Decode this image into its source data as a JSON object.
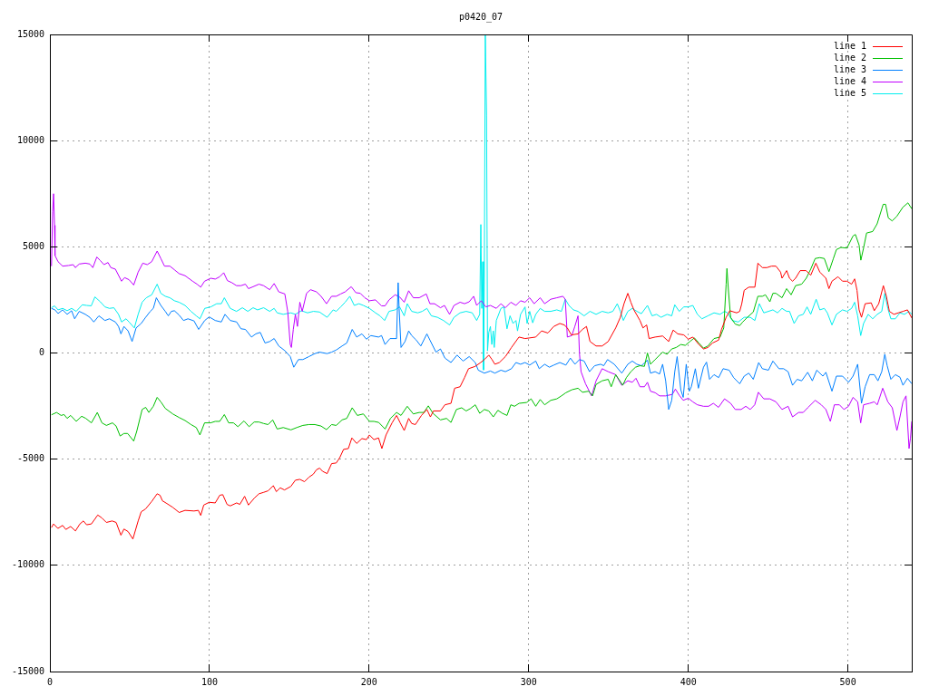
{
  "chart_data": {
    "type": "line",
    "title": "p0420_07",
    "xlim": [
      0,
      540
    ],
    "xticks": [
      0,
      100,
      200,
      300,
      400,
      500
    ],
    "ylim": [
      -15000,
      15000
    ],
    "yticks": [
      -15000,
      -10000,
      -5000,
      0,
      5000,
      10000,
      15000
    ],
    "grid": true,
    "legend": "top right",
    "series": [
      {
        "name": "line 1",
        "color": "#ff0000",
        "x": [
          1,
          2.3,
          5,
          8,
          10,
          13,
          16,
          18.8,
          21,
          23,
          26,
          30,
          32.6,
          35.4,
          39,
          41.5,
          44.5,
          46.4,
          49,
          52,
          55.3,
          57.2,
          60,
          63.8,
          67.2,
          69,
          70.5,
          73.3,
          77,
          81,
          84.7,
          90.3,
          93,
          94.5,
          96.4,
          99.8,
          103.6,
          106.4,
          108.3,
          111,
          113,
          117,
          119,
          122,
          124.4,
          128,
          131,
          134,
          136.7,
          140,
          141.9,
          144.3,
          147,
          151,
          153.8,
          156.6,
          159.5,
          162.3,
          165,
          167,
          169,
          170.8,
          173.7,
          176.5,
          179.4,
          181.6,
          184,
          187,
          189.2,
          192.2,
          195.5,
          198.3,
          200.2,
          203,
          205.9,
          208,
          210.6,
          214.4,
          217.2,
          219.5,
          222,
          224.8,
          226.7,
          229,
          232.8,
          236.2,
          238.4,
          240.3,
          244.7,
          247.5,
          251.3,
          253.6,
          257,
          259.8,
          262.3,
          266.5,
          269.9,
          272.2,
          275,
          277,
          278.8,
          281.6,
          285.4,
          289.2,
          293.9,
          297.7,
          300.6,
          304.4,
          308.1,
          312,
          315.7,
          319.5,
          322.3,
          324.2,
          326.7,
          330.9,
          333.7,
          336.2,
          338.4,
          342.2,
          346,
          349.8,
          354.5,
          357.4,
          359.7,
          362.1,
          364,
          365.9,
          369.7,
          371.6,
          373.9,
          375.4,
          379.2,
          383.9,
          387.7,
          390.5,
          393.4,
          397.2,
          400,
          402.8,
          406.6,
          409.5,
          412.3,
          415.2,
          419,
          420.8,
          423.7,
          426,
          430.3,
          432.2,
          433.5,
          435,
          437.9,
          441.7,
          443.6,
          446.4,
          449.2,
          452.1,
          454.9,
          457.8,
          458.7,
          461.6,
          463.4,
          465.3,
          467.2,
          470.1,
          473.8,
          476.7,
          479.9,
          482.4,
          486.2,
          488.1,
          490,
          493.8,
          496.6,
          499.4,
          502.3,
          504.2,
          505.7,
          507,
          508.5,
          510.8,
          514.6,
          516.5,
          519.3,
          522.2,
          524.1,
          526,
          528.8,
          531.6,
          534.5,
          537.3,
          540
        ],
        "values": [
          -8220,
          -8050,
          -8260,
          -8120,
          -8310,
          -8170,
          -8380,
          -8050,
          -7910,
          -8090,
          -8050,
          -7630,
          -7770,
          -7980,
          -7910,
          -7980,
          -8580,
          -8290,
          -8410,
          -8760,
          -7910,
          -7480,
          -7340,
          -6990,
          -6630,
          -6700,
          -6960,
          -7090,
          -7270,
          -7510,
          -7410,
          -7440,
          -7410,
          -7650,
          -7160,
          -7030,
          -7060,
          -6700,
          -6670,
          -7130,
          -7200,
          -7060,
          -7130,
          -6750,
          -7160,
          -6840,
          -6630,
          -6560,
          -6490,
          -6250,
          -6530,
          -6350,
          -6450,
          -6280,
          -5990,
          -5950,
          -6060,
          -5850,
          -5710,
          -5500,
          -5420,
          -5570,
          -5680,
          -5210,
          -5180,
          -4930,
          -4540,
          -4500,
          -4000,
          -4260,
          -4030,
          -4080,
          -3860,
          -4080,
          -4000,
          -4500,
          -3860,
          -3290,
          -2940,
          -3290,
          -3650,
          -3080,
          -3320,
          -3370,
          -2940,
          -2660,
          -3010,
          -2730,
          -2730,
          -2440,
          -2370,
          -1660,
          -1590,
          -1160,
          -740,
          -630,
          -450,
          -310,
          -100,
          -310,
          -530,
          -450,
          -170,
          260,
          750,
          680,
          710,
          750,
          1040,
          940,
          1250,
          1390,
          1320,
          1180,
          850,
          900,
          1110,
          1250,
          540,
          330,
          330,
          540,
          1180,
          1680,
          2320,
          2810,
          2390,
          2030,
          1530,
          1180,
          1320,
          680,
          750,
          800,
          540,
          1080,
          900,
          850,
          650,
          750,
          400,
          190,
          260,
          470,
          610,
          1110,
          1680,
          1990,
          1890,
          1960,
          2320,
          2950,
          3100,
          3100,
          4230,
          4020,
          4020,
          4090,
          4090,
          3810,
          3520,
          3880,
          3520,
          3380,
          3520,
          3880,
          3880,
          3660,
          4230,
          3810,
          3520,
          3030,
          3380,
          3590,
          3380,
          3380,
          3240,
          3490,
          2950,
          2030,
          1680,
          2320,
          2360,
          1990,
          2320,
          3170,
          2670,
          1960,
          1820,
          1890,
          1960,
          2030,
          1650
        ]
      },
      {
        "name": "line 2",
        "color": "#00c000",
        "x": [
          1,
          4.2,
          7,
          8.9,
          10.8,
          13,
          16.5,
          19.9,
          22.5,
          26,
          29.7,
          32.6,
          35.4,
          39.2,
          41.5,
          44,
          46.4,
          48.7,
          52.5,
          54.4,
          57.8,
          60,
          62,
          64.8,
          67.2,
          69.5,
          72.3,
          77,
          81,
          84.7,
          88.4,
          91.7,
          94,
          96.9,
          100.7,
          103.6,
          106.4,
          109.3,
          112,
          115,
          117.8,
          121.6,
          124.8,
          128,
          131,
          133.9,
          136.7,
          139.6,
          142.4,
          146.2,
          151,
          154.7,
          158.5,
          162.3,
          166,
          169.9,
          173.3,
          176.5,
          179.4,
          183.1,
          186,
          189.4,
          192.6,
          196.4,
          200.2,
          203,
          206,
          210,
          213.4,
          217.2,
          220,
          223.9,
          227.7,
          231.4,
          234.3,
          237.1,
          240,
          244.7,
          248.5,
          251.3,
          254.7,
          258,
          260.8,
          263.6,
          266.5,
          269.3,
          272.2,
          275,
          277.8,
          280.7,
          283.5,
          286.4,
          288.8,
          291.1,
          294,
          298.7,
          301.5,
          304.4,
          307.2,
          310,
          313.8,
          317.6,
          320.5,
          323.3,
          327.1,
          330.9,
          333.7,
          337.5,
          340,
          342.2,
          346,
          349.8,
          351.7,
          354.5,
          358.9,
          361.2,
          364,
          366.9,
          369.7,
          372.5,
          374.4,
          376.3,
          379.2,
          383.9,
          386.7,
          389.6,
          392.4,
          395.3,
          398.1,
          401,
          403.8,
          406.6,
          409.5,
          412.3,
          416.1,
          419.9,
          422.2,
          423.7,
          424.2,
          425.2,
          426.5,
          429.4,
          432.2,
          434.1,
          437,
          440.7,
          443.6,
          446.4,
          448.3,
          451.1,
          453,
          454.9,
          458.7,
          461.6,
          464.4,
          467.2,
          471,
          473.9,
          476.7,
          479.5,
          482.4,
          485.2,
          488.1,
          490.9,
          492.8,
          495.6,
          499.4,
          503.2,
          504.7,
          507,
          508.1,
          509.8,
          511.7,
          515.5,
          518.3,
          522.1,
          523.6,
          525.3,
          527.7,
          530.6,
          534.4,
          537.6,
          540
        ],
        "values": [
          -2910,
          -2800,
          -2940,
          -2900,
          -3080,
          -2940,
          -3220,
          -2980,
          -3080,
          -3290,
          -2800,
          -3290,
          -3410,
          -3290,
          -3440,
          -3910,
          -3790,
          -3790,
          -4150,
          -3690,
          -2660,
          -2560,
          -2800,
          -2510,
          -2090,
          -2300,
          -2610,
          -2870,
          -3040,
          -3180,
          -3370,
          -3510,
          -3860,
          -3290,
          -3290,
          -3220,
          -3220,
          -2900,
          -3290,
          -3290,
          -3470,
          -3200,
          -3470,
          -3250,
          -3250,
          -3320,
          -3370,
          -3150,
          -3580,
          -3510,
          -3620,
          -3510,
          -3410,
          -3370,
          -3370,
          -3440,
          -3610,
          -3370,
          -3410,
          -3150,
          -3080,
          -2580,
          -2940,
          -2870,
          -3220,
          -3220,
          -3270,
          -3580,
          -3080,
          -2800,
          -2940,
          -2510,
          -2870,
          -2800,
          -2800,
          -2490,
          -2840,
          -3150,
          -3080,
          -3270,
          -2660,
          -2580,
          -2730,
          -2610,
          -2440,
          -2840,
          -2660,
          -2730,
          -3010,
          -2700,
          -2840,
          -2940,
          -2440,
          -2510,
          -2370,
          -2330,
          -2160,
          -2510,
          -2190,
          -2440,
          -2230,
          -2160,
          -2020,
          -1870,
          -1730,
          -1660,
          -1850,
          -1800,
          -2020,
          -1480,
          -1310,
          -1240,
          -1590,
          -1020,
          -1520,
          -1160,
          -880,
          -670,
          -600,
          -630,
          0,
          -530,
          -310,
          40,
          -60,
          190,
          260,
          400,
          360,
          540,
          710,
          470,
          230,
          330,
          680,
          750,
          1180,
          3240,
          3980,
          2880,
          1680,
          1360,
          1290,
          1460,
          1680,
          1930,
          2670,
          2670,
          2740,
          2410,
          2810,
          2810,
          2600,
          3030,
          2740,
          3170,
          3240,
          3520,
          3950,
          4450,
          4490,
          4450,
          3830,
          4450,
          4870,
          4970,
          4940,
          5510,
          5580,
          5080,
          4370,
          4940,
          5650,
          5720,
          6080,
          7000,
          7000,
          6360,
          6220,
          6430,
          6860,
          7070,
          6790
        ]
      },
      {
        "name": "line 3",
        "color": "#0080ff",
        "x": [
          1,
          3.2,
          5.1,
          8,
          10.8,
          13.6,
          15.5,
          18.4,
          22.2,
          25,
          27.5,
          30.7,
          34.5,
          37.3,
          41,
          43,
          44.5,
          46.4,
          49,
          51.5,
          54,
          57.2,
          60,
          62.9,
          64.8,
          66.7,
          69.5,
          72.3,
          74.2,
          76.1,
          78,
          80.9,
          83.7,
          86.5,
          90.3,
          93.2,
          97,
          99.8,
          103.6,
          107.4,
          109.7,
          113,
          117,
          119.7,
          122.5,
          126.3,
          129,
          131.8,
          134.8,
          137.7,
          140.5,
          143.4,
          147.2,
          150.6,
          152.8,
          155.7,
          158.5,
          162.3,
          166,
          168.9,
          173.7,
          176.5,
          179.4,
          183.1,
          186,
          189.4,
          192.2,
          195.5,
          198.3,
          201.1,
          205.9,
          207.8,
          210,
          213.1,
          217.2,
          218.2,
          218.8,
          220,
          222.5,
          224.8,
          226.7,
          229.5,
          232.4,
          236.2,
          238.1,
          241.9,
          244.7,
          247.5,
          251.3,
          255.1,
          258.9,
          262.7,
          266.5,
          268.4,
          272.2,
          276,
          278.8,
          282.6,
          285.4,
          289.2,
          292,
          294.9,
          297.7,
          300.6,
          304.4,
          306.6,
          310,
          312.9,
          315.7,
          319.5,
          323.3,
          326.1,
          329,
          331.8,
          334.7,
          338.1,
          341.3,
          345.1,
          347,
          349.4,
          353.6,
          358.3,
          362.1,
          364.9,
          367.7,
          370.6,
          374.4,
          376.3,
          379.2,
          382,
          383.9,
          385.8,
          387.7,
          389.6,
          391.5,
          393,
          395.3,
          396.8,
          398.7,
          400.6,
          401.9,
          404.4,
          406.3,
          409.5,
          411.4,
          413.3,
          416.1,
          419,
          421.8,
          425.6,
          428.4,
          432.2,
          435,
          437.9,
          440.7,
          444.1,
          446.4,
          450.2,
          453,
          456.8,
          459.7,
          462.5,
          465.3,
          468.2,
          471,
          474.8,
          477.7,
          480.5,
          484.3,
          486.2,
          490,
          492.8,
          496.6,
          500.4,
          503.2,
          506.1,
          508.5,
          510.8,
          513.6,
          516.5,
          518.8,
          521.2,
          523.1,
          524.6,
          526.9,
          529.7,
          532.6,
          534.5,
          537.3,
          540
        ],
        "values": [
          2100,
          2030,
          1860,
          2030,
          1820,
          1990,
          1610,
          1960,
          1820,
          1680,
          1460,
          1750,
          1530,
          1610,
          1460,
          1250,
          900,
          1250,
          1040,
          540,
          1180,
          1390,
          1680,
          1960,
          2100,
          2600,
          2240,
          1960,
          1750,
          1960,
          1990,
          1790,
          1530,
          1610,
          1510,
          1110,
          1530,
          1700,
          1530,
          1460,
          1820,
          1530,
          1460,
          1140,
          1110,
          750,
          900,
          970,
          470,
          540,
          680,
          330,
          110,
          -170,
          -670,
          -310,
          -310,
          -170,
          -30,
          40,
          -30,
          40,
          140,
          330,
          470,
          1110,
          750,
          900,
          650,
          820,
          750,
          820,
          400,
          680,
          680,
          3310,
          2100,
          260,
          540,
          1040,
          820,
          610,
          330,
          900,
          610,
          40,
          190,
          -240,
          -450,
          -100,
          -380,
          -170,
          -450,
          -810,
          -950,
          -850,
          -950,
          -810,
          -880,
          -740,
          -450,
          -530,
          -450,
          -570,
          -380,
          -740,
          -530,
          -670,
          -570,
          -450,
          -570,
          -240,
          -530,
          -310,
          -380,
          -880,
          -600,
          -530,
          -600,
          -310,
          -530,
          -950,
          -530,
          -380,
          -530,
          -600,
          -340,
          -950,
          -880,
          -990,
          -530,
          -1310,
          -2660,
          -2230,
          -880,
          -170,
          -1730,
          -2090,
          -530,
          -1800,
          -1590,
          -740,
          -1660,
          -670,
          -430,
          -1240,
          -1020,
          -1160,
          -740,
          -810,
          -1160,
          -1450,
          -1090,
          -950,
          -1240,
          -450,
          -740,
          -810,
          -380,
          -740,
          -740,
          -880,
          -1520,
          -1240,
          -1310,
          -910,
          -1310,
          -810,
          -1090,
          -910,
          -1800,
          -1090,
          -1090,
          -1380,
          -1090,
          -530,
          -2370,
          -1590,
          -1020,
          -1020,
          -1310,
          -880,
          -60,
          -600,
          -1240,
          -1020,
          -1140,
          -1520,
          -1190,
          -1450
        ]
      },
      {
        "name": "line 4",
        "color": "#c000ff",
        "x": [
          1,
          1.7,
          2.3,
          2.9,
          3.2,
          5.1,
          8,
          11.7,
          14.6,
          15.9,
          18.4,
          22.2,
          25,
          26.9,
          29.4,
          31.6,
          33.9,
          36.4,
          38.2,
          41,
          44.9,
          46.8,
          49.6,
          52.5,
          55.3,
          58.2,
          61,
          63.8,
          67.2,
          69.5,
          71.8,
          75.2,
          78,
          80.9,
          84.7,
          89.4,
          92.2,
          94.5,
          96.9,
          100.8,
          103.6,
          106.4,
          108.9,
          111.2,
          114,
          116.9,
          119.7,
          122.5,
          124.4,
          127.3,
          131,
          133.9,
          137.7,
          140.5,
          143.4,
          147.2,
          149,
          150.6,
          151.3,
          152.5,
          153.8,
          155.1,
          156.6,
          158.1,
          160.8,
          163.3,
          167,
          169.9,
          173.3,
          176.5,
          179.4,
          182.2,
          185,
          188.8,
          191.7,
          194.5,
          197.3,
          200.2,
          204,
          207.8,
          210,
          212.5,
          216.3,
          219.1,
          222,
          224.8,
          227.7,
          231.4,
          235.8,
          238.1,
          241,
          244.7,
          247.2,
          250.4,
          253.2,
          257,
          259.8,
          262.7,
          265.5,
          267.4,
          270.3,
          273.1,
          276,
          279.7,
          282.6,
          285.4,
          288.8,
          292,
          294.9,
          297.7,
          300.6,
          303.4,
          307.2,
          310,
          313.8,
          317.6,
          321.4,
          322.9,
          324.2,
          327,
          328.9,
          330.9,
          331.8,
          332.8,
          335.6,
          339.4,
          342.2,
          346,
          349.8,
          354.5,
          358.3,
          362.1,
          364.9,
          367.2,
          369.7,
          372.5,
          374.4,
          376.3,
          379.2,
          382,
          385.8,
          390,
          391.9,
          394.3,
          396.8,
          400,
          402.8,
          405.7,
          409.5,
          412.7,
          415.7,
          418.9,
          422.7,
          426.5,
          429.4,
          433.1,
          436,
          438.8,
          441.6,
          443.9,
          447.3,
          451.1,
          454.9,
          458.7,
          462.5,
          465.3,
          469.1,
          472,
          474.8,
          479.5,
          483.3,
          486.2,
          489,
          491.5,
          494.7,
          497.5,
          500.4,
          503.2,
          506.1,
          508,
          509.8,
          513.6,
          516.5,
          518.4,
          521.8,
          525,
          527.8,
          530.7,
          532.6,
          534.5,
          536.4,
          538.3,
          539.2,
          540
        ],
        "values": [
          4090,
          6650,
          7500,
          6010,
          4590,
          4300,
          4090,
          4120,
          4160,
          4020,
          4190,
          4230,
          4190,
          4020,
          4520,
          4350,
          4160,
          4260,
          4020,
          3950,
          3380,
          3550,
          3450,
          3200,
          3810,
          4230,
          4160,
          4300,
          4800,
          4450,
          4090,
          4090,
          3920,
          3740,
          3640,
          3380,
          3240,
          3100,
          3380,
          3520,
          3480,
          3590,
          3780,
          3410,
          3310,
          3170,
          3170,
          3240,
          3030,
          3120,
          3240,
          3170,
          2980,
          3270,
          2880,
          2780,
          1960,
          400,
          260,
          1110,
          1820,
          1250,
          2390,
          1960,
          2810,
          2980,
          2880,
          2670,
          2320,
          2670,
          2670,
          2780,
          2880,
          3120,
          2840,
          2810,
          2600,
          2460,
          2500,
          2220,
          2220,
          2500,
          2740,
          2640,
          2390,
          2930,
          2600,
          2600,
          2780,
          2320,
          2320,
          2130,
          2240,
          1820,
          2240,
          2390,
          2320,
          2410,
          2670,
          2240,
          2460,
          2170,
          2240,
          2100,
          2320,
          2130,
          2390,
          2240,
          2460,
          2390,
          2600,
          2320,
          2600,
          2320,
          2530,
          2600,
          2670,
          2530,
          750,
          820,
          1250,
          1750,
          -30,
          -880,
          -1450,
          -2020,
          -1310,
          -740,
          -880,
          -1020,
          -1520,
          -1310,
          -1380,
          -1190,
          -1590,
          -1590,
          -1380,
          -1800,
          -1870,
          -2020,
          -2020,
          -1950,
          -1700,
          -1990,
          -2230,
          -2130,
          -2300,
          -2440,
          -2510,
          -2510,
          -2370,
          -2560,
          -2160,
          -2370,
          -2660,
          -2660,
          -2510,
          -2660,
          -2440,
          -1850,
          -2160,
          -2160,
          -2300,
          -2660,
          -2510,
          -3010,
          -2800,
          -2800,
          -2580,
          -2230,
          -2440,
          -2660,
          -3220,
          -2440,
          -2440,
          -2660,
          -2510,
          -2090,
          -2300,
          -3290,
          -2440,
          -2370,
          -2300,
          -2440,
          -1660,
          -2300,
          -2580,
          -3650,
          -3010,
          -2300,
          -2020,
          -4500,
          -4000,
          -3220
        ]
      },
      {
        "name": "line 5",
        "color": "#00eeee",
        "x": [
          1,
          2.9,
          5.1,
          8,
          10.8,
          13.6,
          16.5,
          20.3,
          23,
          25.9,
          28.2,
          31.6,
          34.5,
          37.3,
          40.1,
          43,
          44.9,
          47.7,
          49.6,
          52.9,
          55.3,
          57.8,
          60.4,
          63.8,
          67.2,
          69.5,
          72.3,
          75.2,
          78,
          80.9,
          84.7,
          88.4,
          91.7,
          94,
          97,
          100.8,
          104.5,
          107.4,
          109.3,
          113,
          116.9,
          120.6,
          124,
          127.3,
          130.1,
          133.9,
          137.7,
          140.5,
          142.4,
          146.2,
          151,
          153.8,
          157.6,
          161.4,
          165.1,
          168.9,
          173.7,
          177.5,
          179.4,
          182.2,
          185,
          187.9,
          190.7,
          193.6,
          196.4,
          200.2,
          204,
          206.8,
          209.7,
          212.5,
          216.3,
          219.1,
          222,
          223.9,
          226.7,
          230.5,
          233.3,
          236.2,
          239,
          242.8,
          246.6,
          250.4,
          253.2,
          257,
          260.8,
          264.6,
          267.4,
          269.3,
          270,
          270.6,
          271.2,
          271.7,
          272.2,
          272.8,
          273.6,
          274.2,
          275,
          276,
          276.9,
          277.8,
          278.4,
          279.7,
          282.6,
          284.5,
          286.4,
          288.3,
          290.2,
          292,
          293,
          294.9,
          297.7,
          299,
          300.6,
          302.5,
          304.4,
          307.2,
          310,
          313.8,
          317.6,
          320.5,
          322.9,
          325.2,
          328,
          330.9,
          334.7,
          338.4,
          342.2,
          346,
          349.8,
          352.7,
          355.5,
          357.4,
          359.3,
          362.1,
          364.9,
          367.8,
          370.6,
          374.4,
          377.3,
          380.1,
          382.9,
          386.7,
          389.6,
          391.5,
          394.3,
          397.2,
          400,
          402.8,
          405.7,
          408.5,
          412.3,
          416.1,
          419.9,
          422.7,
          424.6,
          427.5,
          431.3,
          435,
          438.8,
          441.7,
          444.5,
          447.3,
          450.2,
          453,
          455.9,
          458.7,
          461.6,
          463.4,
          466.3,
          469.1,
          472,
          474.4,
          476.7,
          480.1,
          482.4,
          485.2,
          487.1,
          490,
          492.8,
          496.6,
          499.4,
          502.3,
          504.2,
          506.1,
          508,
          509.8,
          512.7,
          515.5,
          518.4,
          521.2,
          523.1,
          525,
          526.9,
          529.7,
          532.6,
          535.4,
          538.3,
          540
        ],
        "values": [
          2130,
          2220,
          2030,
          2100,
          1990,
          2100,
          1960,
          2270,
          2240,
          2220,
          2640,
          2410,
          2170,
          2100,
          2130,
          1820,
          1460,
          1610,
          1460,
          1180,
          1820,
          2390,
          2600,
          2740,
          3240,
          2810,
          2670,
          2600,
          2460,
          2390,
          2240,
          1960,
          1750,
          1610,
          2100,
          2170,
          2320,
          2320,
          2600,
          2100,
          1960,
          2130,
          1960,
          2130,
          2030,
          2130,
          1960,
          2100,
          1890,
          1820,
          1890,
          1820,
          1990,
          1890,
          1960,
          1930,
          1680,
          2030,
          1960,
          2170,
          2390,
          2670,
          2240,
          2320,
          2240,
          2100,
          1890,
          1750,
          1530,
          1960,
          2030,
          2170,
          1750,
          2320,
          1960,
          1890,
          1960,
          2100,
          1750,
          1680,
          1530,
          1320,
          1680,
          1890,
          1960,
          1890,
          1530,
          1820,
          6050,
          2100,
          4300,
          -800,
          3900,
          15000,
          11200,
          100,
          970,
          1250,
          400,
          1040,
          260,
          1530,
          2100,
          2170,
          1140,
          1750,
          1390,
          1530,
          1040,
          1820,
          2170,
          1390,
          1960,
          1420,
          1820,
          2100,
          1960,
          1960,
          2030,
          1960,
          2530,
          2240,
          2030,
          1960,
          1750,
          1960,
          1820,
          1960,
          1890,
          1960,
          2320,
          1960,
          1530,
          1960,
          2100,
          1960,
          1850,
          2240,
          1750,
          1820,
          1680,
          1820,
          1750,
          2270,
          1960,
          2170,
          2170,
          2240,
          1820,
          1610,
          1750,
          1890,
          1820,
          1960,
          1890,
          1530,
          1460,
          1680,
          1680,
          1530,
          2320,
          1890,
          1960,
          2030,
          1890,
          2100,
          1960,
          1960,
          1390,
          1750,
          1820,
          2170,
          1820,
          2530,
          2030,
          2100,
          1890,
          1320,
          1820,
          2030,
          1960,
          2100,
          2390,
          1750,
          820,
          1390,
          1820,
          1610,
          1820,
          1960,
          2810,
          2100,
          1610,
          1610,
          1890,
          1820,
          1960,
          1820
        ]
      }
    ]
  }
}
